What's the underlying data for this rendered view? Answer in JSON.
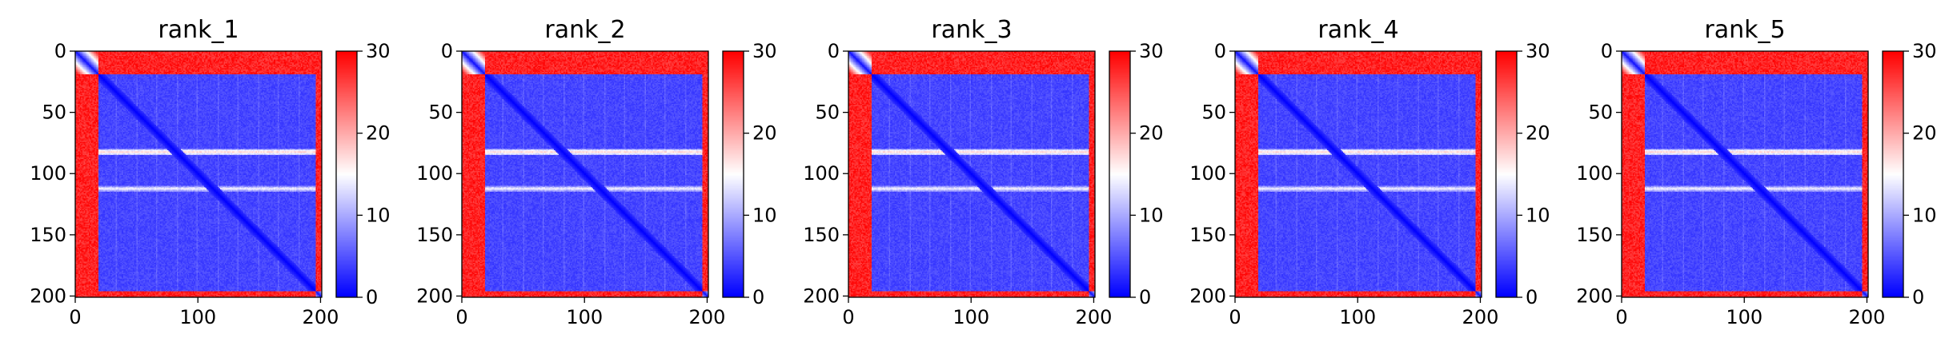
{
  "chart_data": {
    "type": "heatmap",
    "description_of_values": "Predicted aligned error matrices (residue x residue) for five model ranks",
    "colormap": {
      "name": "bwr",
      "low_color": "#0000ff",
      "mid_color": "#ffffff",
      "high_color": "#ff0000",
      "vmin": 0,
      "vmax": 30
    },
    "colorbar": {
      "ticks": [
        0,
        10,
        20,
        30
      ],
      "tick_labels": [
        "0",
        "10",
        "20",
        "30"
      ]
    },
    "xlim": [
      0,
      201
    ],
    "ylim": [
      201,
      0
    ],
    "x_ticks": [
      0,
      100,
      200
    ],
    "x_tick_labels": [
      "0",
      "100",
      "200"
    ],
    "y_ticks": [
      0,
      50,
      100,
      150,
      200
    ],
    "y_tick_labels": [
      "0",
      "50",
      "100",
      "150",
      "200"
    ],
    "matrix_size": 201,
    "panels": [
      {
        "title": "rank_1"
      },
      {
        "title": "rank_2"
      },
      {
        "title": "rank_3"
      },
      {
        "title": "rank_4"
      },
      {
        "title": "rank_5"
      }
    ],
    "structure": {
      "low_error_domain_residues": [
        20,
        195
      ],
      "high_error_nterm_residues": [
        0,
        18
      ],
      "high_error_cterm_residues": [
        196,
        201
      ],
      "diagonal_error": 0,
      "domain_interior_error": 3,
      "terminal_error": 30,
      "elevated_rows": [
        {
          "residue": 82,
          "error": 16
        },
        {
          "residue": 112,
          "error": 13
        }
      ]
    }
  }
}
